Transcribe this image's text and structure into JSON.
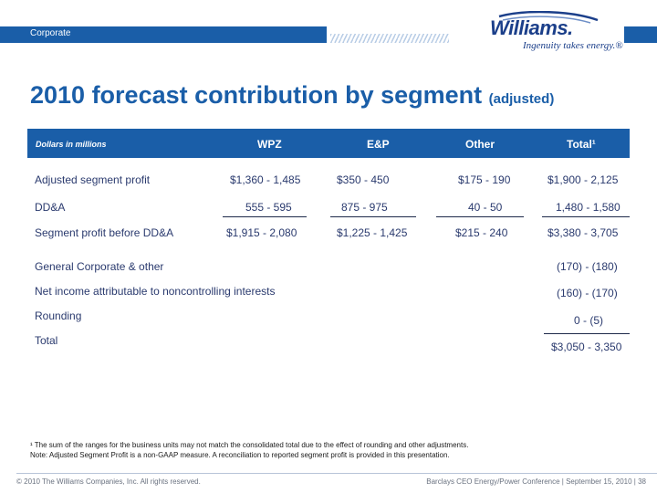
{
  "header": {
    "section_label": "Corporate",
    "logo": {
      "wordmark": "Williams.",
      "tagline": "Ingenuity takes energy.®"
    }
  },
  "title": {
    "main": "2010 forecast contribution by segment",
    "qualifier": "(adjusted)"
  },
  "table": {
    "units_label": "Dollars in millions",
    "columns": [
      "WPZ",
      "E&P",
      "Other",
      "Total¹"
    ],
    "segment_rows": [
      {
        "label": "Adjusted segment profit",
        "values": [
          "$1,360 - 1,485",
          "$350 - 450",
          "$175 - 190",
          "$1,900 - 2,125"
        ]
      },
      {
        "label": "DD&A",
        "values": [
          "555 - 595",
          "875 - 975",
          "40 - 50",
          "1,480 - 1,580"
        ]
      },
      {
        "label": "Segment profit before DD&A",
        "values": [
          "$1,915 - 2,080",
          "$1,225 - 1,425",
          "$215 - 240",
          "$3,380 - 3,705"
        ]
      }
    ],
    "other_rows": [
      {
        "label": "General Corporate & other",
        "total": "(170) - (180)"
      },
      {
        "label": "Net income attributable to noncontrolling interests",
        "total": "(160) - (170)"
      },
      {
        "label": "Rounding",
        "total": "0 - (5)"
      },
      {
        "label": "Total",
        "total": "$3,050 - 3,350"
      }
    ]
  },
  "footnotes": {
    "note1": "¹ The sum of the ranges for the business units may not match the consolidated total due to the effect of rounding and other adjustments.",
    "note2": "Note:  Adjusted Segment Profit is a non-GAAP measure.  A reconciliation to reported segment profit is provided in this presentation."
  },
  "footer": {
    "copyright": "© 2010 The Williams Companies, Inc. All rights reserved.",
    "event": "Barclays CEO Energy/Power Conference  | September 15, 2010  |  38"
  },
  "colors": {
    "brand_blue": "#1a5ea8",
    "text_navy": "#2a3a6e"
  }
}
